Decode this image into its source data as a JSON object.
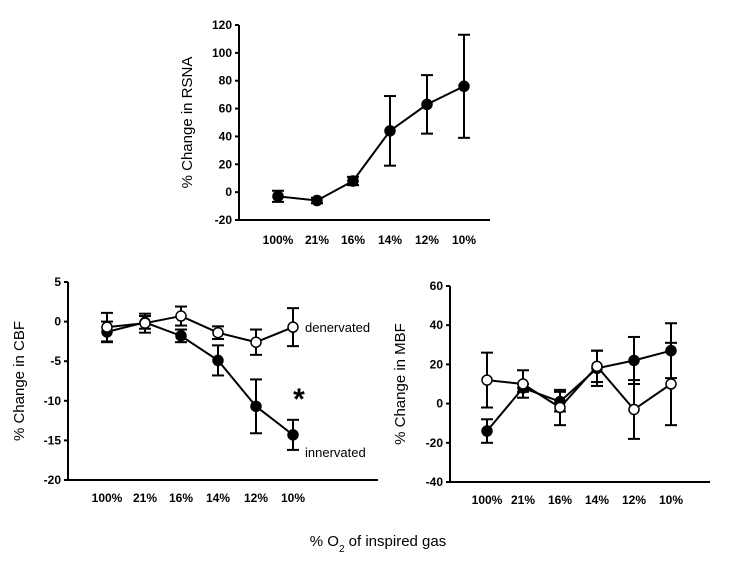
{
  "chart_data": [
    {
      "type": "line",
      "ylabel": "% Change in RSNA",
      "categories": [
        "100%",
        "21%",
        "16%",
        "14%",
        "12%",
        "10%"
      ],
      "ylim": [
        -20,
        120
      ],
      "yticks": [
        -20,
        0,
        20,
        40,
        60,
        80,
        100,
        120
      ],
      "grid": false,
      "series": [
        {
          "marker": "filled",
          "values": [
            -3,
            -6,
            8,
            44,
            63,
            76
          ],
          "error": [
            4,
            2,
            3,
            25,
            21,
            37
          ]
        }
      ]
    },
    {
      "type": "line",
      "ylabel": "% Change in CBF",
      "categories": [
        "100%",
        "21%",
        "16%",
        "14%",
        "12%",
        "10%"
      ],
      "ylim": [
        -20,
        5
      ],
      "yticks": [
        -20,
        -15,
        -10,
        -5,
        0,
        5
      ],
      "grid": false,
      "series": [
        {
          "name": "innervated",
          "marker": "filled",
          "values": [
            -1.3,
            -0.1,
            -1.8,
            -4.9,
            -10.7,
            -14.3
          ],
          "error": [
            1.3,
            0.8,
            0.8,
            1.9,
            3.4,
            1.9
          ]
        },
        {
          "name": "denervated",
          "marker": "open",
          "values": [
            -0.7,
            -0.2,
            0.7,
            -1.4,
            -2.6,
            -0.7
          ],
          "error": [
            1.8,
            1.2,
            1.2,
            0.8,
            1.6,
            2.4
          ]
        }
      ],
      "annotation": "*"
    },
    {
      "type": "line",
      "ylabel": "% Change in MBF",
      "categories": [
        "100%",
        "21%",
        "16%",
        "14%",
        "12%",
        "10%"
      ],
      "ylim": [
        -40,
        60
      ],
      "yticks": [
        -40,
        -20,
        0,
        20,
        40,
        60
      ],
      "grid": false,
      "series": [
        {
          "marker": "filled",
          "values": [
            -14,
            8,
            1,
            18,
            22,
            27
          ],
          "error": [
            6,
            2,
            5,
            9,
            12,
            14
          ]
        },
        {
          "marker": "open",
          "values": [
            12,
            10,
            -2,
            19,
            -3,
            10
          ],
          "error": [
            14,
            7,
            9,
            8,
            15,
            21
          ]
        }
      ]
    }
  ],
  "shared_xlabel": {
    "prefix": "% O",
    "subscript": "2",
    "suffix": " of inspired gas"
  }
}
